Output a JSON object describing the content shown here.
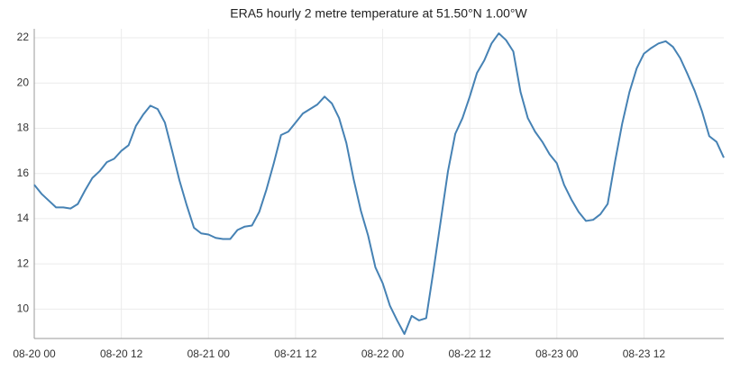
{
  "chart_data": {
    "type": "line",
    "title": "ERA5 hourly 2 metre temperature at 51.50°N 1.00°W",
    "x": [
      "08-20 00",
      "08-20 01",
      "08-20 02",
      "08-20 03",
      "08-20 04",
      "08-20 05",
      "08-20 06",
      "08-20 07",
      "08-20 08",
      "08-20 09",
      "08-20 10",
      "08-20 11",
      "08-20 12",
      "08-20 13",
      "08-20 14",
      "08-20 15",
      "08-20 16",
      "08-20 17",
      "08-20 18",
      "08-20 19",
      "08-20 20",
      "08-20 21",
      "08-20 22",
      "08-20 23",
      "08-21 00",
      "08-21 01",
      "08-21 02",
      "08-21 03",
      "08-21 04",
      "08-21 05",
      "08-21 06",
      "08-21 07",
      "08-21 08",
      "08-21 09",
      "08-21 10",
      "08-21 11",
      "08-21 12",
      "08-21 13",
      "08-21 14",
      "08-21 15",
      "08-21 16",
      "08-21 17",
      "08-21 18",
      "08-21 19",
      "08-21 20",
      "08-21 21",
      "08-21 22",
      "08-21 23",
      "08-22 00",
      "08-22 01",
      "08-22 02",
      "08-22 03",
      "08-22 04",
      "08-22 05",
      "08-22 06",
      "08-22 07",
      "08-22 08",
      "08-22 09",
      "08-22 10",
      "08-22 11",
      "08-22 12",
      "08-22 13",
      "08-22 14",
      "08-22 15",
      "08-22 16",
      "08-22 17",
      "08-22 18",
      "08-22 19",
      "08-22 20",
      "08-22 21",
      "08-22 22",
      "08-22 23",
      "08-23 00",
      "08-23 01",
      "08-23 02",
      "08-23 03",
      "08-23 04",
      "08-23 05",
      "08-23 06",
      "08-23 07",
      "08-23 08",
      "08-23 09",
      "08-23 10",
      "08-23 11",
      "08-23 12",
      "08-23 13",
      "08-23 14",
      "08-23 15",
      "08-23 16",
      "08-23 17",
      "08-23 18",
      "08-23 19",
      "08-23 20",
      "08-23 21",
      "08-23 22",
      "08-23 23"
    ],
    "series": [
      {
        "color": "#4682b4",
        "values": [
          15.5,
          15.1,
          14.8,
          14.5,
          14.5,
          14.45,
          14.65,
          15.25,
          15.8,
          16.1,
          16.5,
          16.65,
          17.0,
          17.25,
          18.1,
          18.6,
          19.0,
          18.85,
          18.25,
          17.0,
          15.7,
          14.6,
          13.6,
          13.35,
          13.3,
          13.15,
          13.1,
          13.1,
          13.5,
          13.65,
          13.7,
          14.3,
          15.3,
          16.45,
          17.7,
          17.85,
          18.25,
          18.65,
          18.85,
          19.05,
          19.4,
          19.1,
          18.45,
          17.35,
          15.75,
          14.35,
          13.25,
          11.85,
          11.15,
          10.15,
          9.5,
          8.9,
          9.7,
          9.5,
          9.6,
          11.7,
          13.9,
          16.1,
          17.75,
          18.45,
          19.4,
          20.45,
          21.0,
          21.75,
          22.2,
          21.9,
          21.4,
          19.6,
          18.45,
          17.85,
          17.4,
          16.85,
          16.45,
          15.5,
          14.85,
          14.3,
          13.9,
          13.95,
          14.2,
          14.65,
          16.5,
          18.2,
          19.6,
          20.65,
          21.3,
          21.55,
          21.75,
          21.85,
          21.6,
          21.1,
          20.4,
          19.65,
          18.75,
          17.65,
          17.4,
          16.7
        ]
      }
    ],
    "xticks": [
      "08-20 00",
      "08-20 12",
      "08-21 00",
      "08-21 12",
      "08-22 00",
      "08-22 12",
      "08-23 00",
      "08-23 12"
    ],
    "ylim": [
      8.7,
      22.4
    ],
    "yticks": [
      10,
      12,
      14,
      16,
      18,
      20,
      22
    ],
    "grid": true
  }
}
